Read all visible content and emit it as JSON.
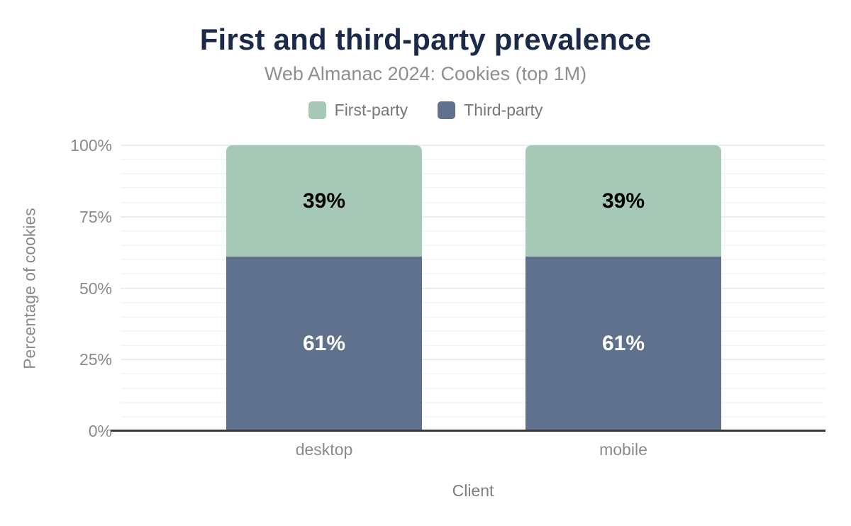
{
  "title": "First and third-party prevalence",
  "subtitle": "Web Almanac 2024: Cookies (top 1M)",
  "chart_data": {
    "type": "bar",
    "stacked": true,
    "title": "First and third-party prevalence",
    "subtitle": "Web Almanac 2024: Cookies (top 1M)",
    "categories": [
      "desktop",
      "mobile"
    ],
    "series": [
      {
        "name": "First-party",
        "color": "#a6c9b7",
        "values": [
          39,
          39
        ],
        "value_labels": [
          "39%",
          "39%"
        ],
        "label_color": "#000000"
      },
      {
        "name": "Third-party",
        "color": "#60718e",
        "values": [
          61,
          61
        ],
        "value_labels": [
          "61%",
          "61%"
        ],
        "label_color": "#ffffff"
      }
    ],
    "stack_order_bottom_to_top": [
      "Third-party",
      "First-party"
    ],
    "xlabel": "Client",
    "ylabel": "Percentage of cookies",
    "ylim": [
      0,
      100
    ],
    "yticks": [
      {
        "value": 0,
        "label": "0%"
      },
      {
        "value": 25,
        "label": "25%"
      },
      {
        "value": 50,
        "label": "50%"
      },
      {
        "value": 75,
        "label": "75%"
      },
      {
        "value": 100,
        "label": "100%"
      }
    ],
    "gridlines": {
      "visible": true,
      "minor_step": 5,
      "major_step": 25
    },
    "legend_position": "top",
    "colors": {
      "title": "#1b2a49",
      "subtitle": "#8d9093",
      "axis_text": "#8a8a8a",
      "legend_text": "#777777",
      "axis_line": "#37383c",
      "background": "#ffffff"
    }
  }
}
